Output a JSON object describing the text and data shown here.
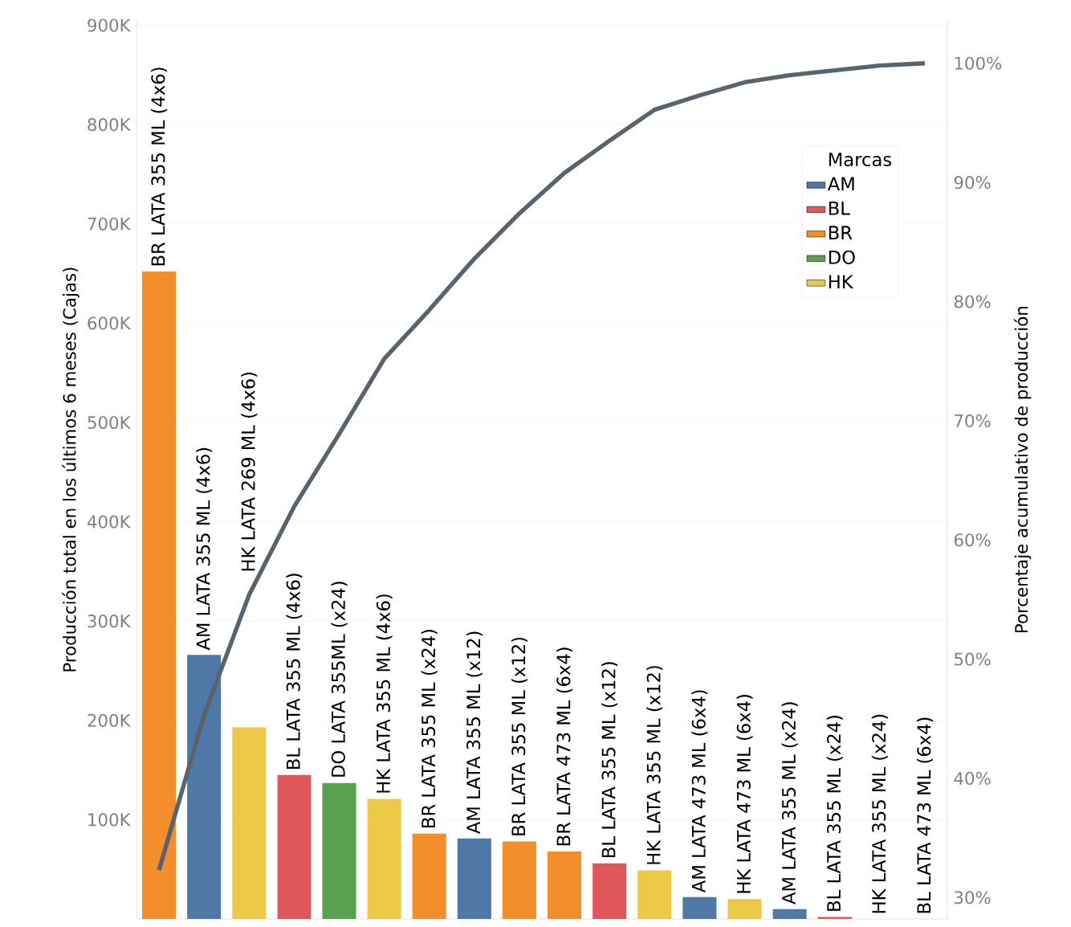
{
  "chart_data": {
    "type": "bar",
    "categories": [
      "BR LATA 355 ML (4x6)",
      "AM LATA 355 ML (4x6)",
      "HK LATA 269 ML (4x6)",
      "BL LATA 355 ML (4x6)",
      "DO LATA 355ML (x24)",
      "HK LATA 355 ML (4x6)",
      "BR LATA 355 ML (x24)",
      "AM LATA 355 ML (x12)",
      "BR LATA 355 ML (x12)",
      "BR LATA 473 ML (6x4)",
      "BL LATA 355 ML (x12)",
      "HK LATA 355 ML (x12)",
      "AM LATA 473 ML (6x4)",
      "HK LATA 473 ML (6x4)",
      "AM LATA 355 ML (x24)",
      "BL LATA 355 ML (x24)",
      "HK LATA 355 ML (x24)",
      "BL LATA 473 ML (6x4)"
    ],
    "series": [
      {
        "name": "AM",
        "color": "#4e79a7",
        "values": [
          null,
          266000,
          null,
          null,
          null,
          null,
          null,
          81000,
          null,
          null,
          null,
          null,
          22000,
          null,
          10000,
          null,
          null,
          null
        ]
      },
      {
        "name": "BL",
        "color": "#e15759",
        "values": [
          null,
          null,
          null,
          145000,
          null,
          null,
          null,
          null,
          null,
          null,
          56000,
          null,
          null,
          null,
          null,
          2000,
          null,
          0
        ]
      },
      {
        "name": "BR",
        "color": "#f28e2b",
        "values": [
          652000,
          null,
          null,
          null,
          null,
          null,
          86000,
          null,
          78000,
          68000,
          null,
          null,
          null,
          null,
          null,
          null,
          null,
          null
        ]
      },
      {
        "name": "DO",
        "color": "#59a14f",
        "values": [
          null,
          null,
          null,
          null,
          137000,
          null,
          null,
          null,
          null,
          null,
          null,
          null,
          null,
          null,
          null,
          null,
          null,
          null
        ]
      },
      {
        "name": "HK",
        "color": "#edc948",
        "values": [
          null,
          null,
          193000,
          null,
          null,
          121000,
          null,
          null,
          null,
          null,
          null,
          49000,
          null,
          20000,
          null,
          null,
          0,
          null
        ]
      },
      {
        "type": "line",
        "axis": "y2",
        "color": "#59636e",
        "values": [
          32.3,
          45.3,
          55.4,
          62.8,
          68.9,
          75.2,
          79.3,
          83.6,
          87.4,
          90.8,
          93.5,
          96.1,
          97.3,
          98.4,
          99.0,
          99.4,
          99.8,
          100
        ]
      }
    ],
    "ylim": [
      0,
      905000
    ],
    "yticks": [
      {
        "value": 100000,
        "label": "100K"
      },
      {
        "value": 200000,
        "label": "200K"
      },
      {
        "value": 300000,
        "label": "300K"
      },
      {
        "value": 400000,
        "label": "400K"
      },
      {
        "value": 500000,
        "label": "500K"
      },
      {
        "value": 600000,
        "label": "600K"
      },
      {
        "value": 700000,
        "label": "700K"
      },
      {
        "value": 800000,
        "label": "800K"
      },
      {
        "value": 900000,
        "label": "900K"
      }
    ],
    "y2lim": [
      28.2,
      103.6
    ],
    "y2ticks": [
      {
        "value": 30,
        "label": "30%"
      },
      {
        "value": 40,
        "label": "40%"
      },
      {
        "value": 50,
        "label": "50%"
      },
      {
        "value": 60,
        "label": "60%"
      },
      {
        "value": 70,
        "label": "70%"
      },
      {
        "value": 80,
        "label": "80%"
      },
      {
        "value": 90,
        "label": "90%"
      },
      {
        "value": 100,
        "label": "100%"
      }
    ],
    "ylabel": "Producción total en los últimos 6 meses (Cajas)",
    "y2label": "Porcentaje acumulativo de producción",
    "legend_title": "Marcas",
    "legend": "top right",
    "grid": "y"
  }
}
